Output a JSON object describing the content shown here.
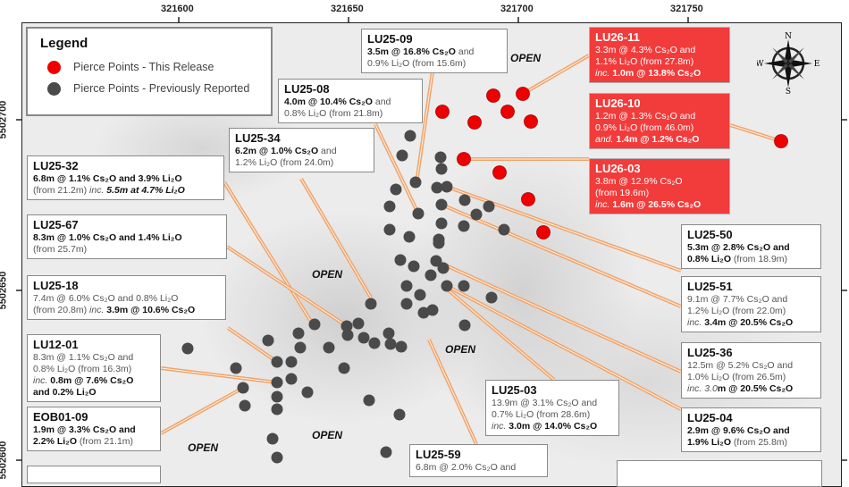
{
  "axes": {
    "x_ticks": [
      "321600",
      "321650",
      "321700",
      "321750"
    ],
    "y_ticks": [
      "5502700",
      "5502650",
      "5502600"
    ]
  },
  "legend": {
    "title": "Legend",
    "items": [
      {
        "label": "Pierce Points - This Release",
        "color": "#ee0000"
      },
      {
        "label": "Pierce Points - Previously Reported",
        "color": "#4a4a4a"
      }
    ]
  },
  "open_label": "OPEN",
  "compass": {
    "n": "N",
    "s": "S",
    "e": "E",
    "w": "W"
  },
  "boxes": [
    {
      "id": "LU25-09",
      "red": false,
      "lines": [
        [
          {
            "t": "3.5m @ 16.8% Cs₂O",
            "b": 1
          },
          {
            "t": " and"
          }
        ],
        [
          {
            "t": "0.9% Li₂O (from 15.6m)"
          }
        ]
      ]
    },
    {
      "id": "LU25-08",
      "red": false,
      "lines": [
        [
          {
            "t": "4.0m @ 10.4% Cs₂O",
            "b": 1
          },
          {
            "t": " and"
          }
        ],
        [
          {
            "t": "0.8% Li₂O (from 21.8m)"
          }
        ]
      ]
    },
    {
      "id": "LU25-34",
      "red": false,
      "lines": [
        [
          {
            "t": "6.2m @ 1.0% Cs₂O",
            "b": 1
          },
          {
            "t": " and"
          }
        ],
        [
          {
            "t": "1.2% Li₂O (from 24.0m)"
          }
        ]
      ]
    },
    {
      "id": "LU25-32",
      "red": false,
      "lines": [
        [
          {
            "t": "6.8m @ 1.1% Cs₂O and 3.9% Li₂O",
            "b": 1
          }
        ],
        [
          {
            "t": "(from 21.2m) "
          },
          {
            "t": "inc.",
            "i": 1
          },
          {
            "t": " 5.5m at 4.7% Li₂O",
            "b": 1,
            "i": 1
          }
        ]
      ]
    },
    {
      "id": "LU25-67",
      "red": false,
      "lines": [
        [
          {
            "t": "8.3m @ 1.0% Cs₂O and 1.4% Li₂O",
            "b": 1
          }
        ],
        [
          {
            "t": "(from 25.7m)"
          }
        ]
      ]
    },
    {
      "id": "LU25-18",
      "red": false,
      "lines": [
        [
          {
            "t": "7.4m @ 6.0% Cs₂O and 0.8% Li₂O"
          }
        ],
        [
          {
            "t": "(from 20.8m) "
          },
          {
            "t": "inc.",
            "i": 1
          },
          {
            "t": " 3.9m @ 10.6% Cs₂O",
            "b": 1
          }
        ]
      ]
    },
    {
      "id": "LU12-01",
      "red": false,
      "lines": [
        [
          {
            "t": "8.3m @ 1.1% Cs₂O  and"
          }
        ],
        [
          {
            "t": "0.8% Li₂O (from 16.3m)"
          }
        ],
        [
          {
            "t": "inc.",
            "i": 1
          },
          {
            "t": " 0.8m @ 7.6% Cs₂O",
            "b": 1
          }
        ],
        [
          {
            "t": "and 0.2% Li₂O",
            "b": 1
          }
        ]
      ]
    },
    {
      "id": "EOB01-09",
      "red": false,
      "lines": [
        [
          {
            "t": "1.9m @ 3.3% Cs₂O and",
            "b": 1
          }
        ],
        [
          {
            "t": "2.2% Li₂O",
            "b": 1
          },
          {
            "t": " (from 21.1m)"
          }
        ]
      ]
    },
    {
      "id": "LU26-11",
      "red": true,
      "lines": [
        [
          {
            "t": "3.3m @ 4.3% Cs₂O and"
          }
        ],
        [
          {
            "t": "1.1% Li₂O (from 27.8m)"
          }
        ],
        [
          {
            "t": "inc.",
            "i": 1
          },
          {
            "t": " 1.0m @ 13.8% Cs₂O",
            "b": 1
          }
        ]
      ]
    },
    {
      "id": "LU26-10",
      "red": true,
      "lines": [
        [
          {
            "t": "1.2m @ 1.3% Cs₂O and"
          }
        ],
        [
          {
            "t": "0.9% Li₂O (from 46.0m)"
          }
        ],
        [
          {
            "t": "and.",
            "i": 1
          },
          {
            "t": " 1.4m @ 1.2% Cs₂O",
            "b": 1
          }
        ]
      ]
    },
    {
      "id": "LU26-03",
      "red": true,
      "lines": [
        [
          {
            "t": "3.8m @ 12.9% Cs₂O"
          }
        ],
        [
          {
            "t": "(from 19.6m)"
          }
        ],
        [
          {
            "t": "inc.",
            "i": 1
          },
          {
            "t": " 1.6m @ 26.5% Cs₂O",
            "b": 1
          }
        ]
      ]
    },
    {
      "id": "LU25-50",
      "red": false,
      "lines": [
        [
          {
            "t": "5.3m @ 2.8% Cs₂O and",
            "b": 1
          }
        ],
        [
          {
            "t": "0.8% Li₂O",
            "b": 1
          },
          {
            "t": " (from 18.9m)"
          }
        ]
      ]
    },
    {
      "id": "LU25-51",
      "red": false,
      "lines": [
        [
          {
            "t": "9.1m @ 7.7% Cs₂O and"
          }
        ],
        [
          {
            "t": "1.2% Li₂O (from 22.0m)"
          }
        ],
        [
          {
            "t": "inc.",
            "i": 1
          },
          {
            "t": " 3.4m @ 20.5% Cs₂O",
            "b": 1
          }
        ]
      ]
    },
    {
      "id": "LU25-36",
      "red": false,
      "lines": [
        [
          {
            "t": "12.5m @ 5.2% Cs₂O and"
          }
        ],
        [
          {
            "t": "1.0% Li₂O (from 26.5m)"
          }
        ],
        [
          {
            "t": "inc. 3.0",
            "i": 1
          },
          {
            "t": "m @ 20.5% Cs₂O",
            "b": 1
          }
        ]
      ]
    },
    {
      "id": "LU25-04",
      "red": false,
      "lines": [
        [
          {
            "t": "2.9m @ 9.6% Cs₂O and",
            "b": 1
          }
        ],
        [
          {
            "t": "1.9% Li₂O",
            "b": 1
          },
          {
            "t": " (from 25.8m)"
          }
        ]
      ]
    },
    {
      "id": "LU25-03",
      "red": false,
      "lines": [
        [
          {
            "t": "13.9m @ 3.1% Cs₂O and"
          }
        ],
        [
          {
            "t": "0.7% Li₂O (from 28.6m)"
          }
        ],
        [
          {
            "t": "inc.",
            "i": 1
          },
          {
            "t": " 3.0m @ 14.0% Cs₂O",
            "b": 1
          }
        ]
      ]
    },
    {
      "id": "LU25-59",
      "red": false,
      "lines": [
        [
          {
            "t": "6.8m @ 2.0% Cs₂O and"
          }
        ]
      ]
    }
  ]
}
